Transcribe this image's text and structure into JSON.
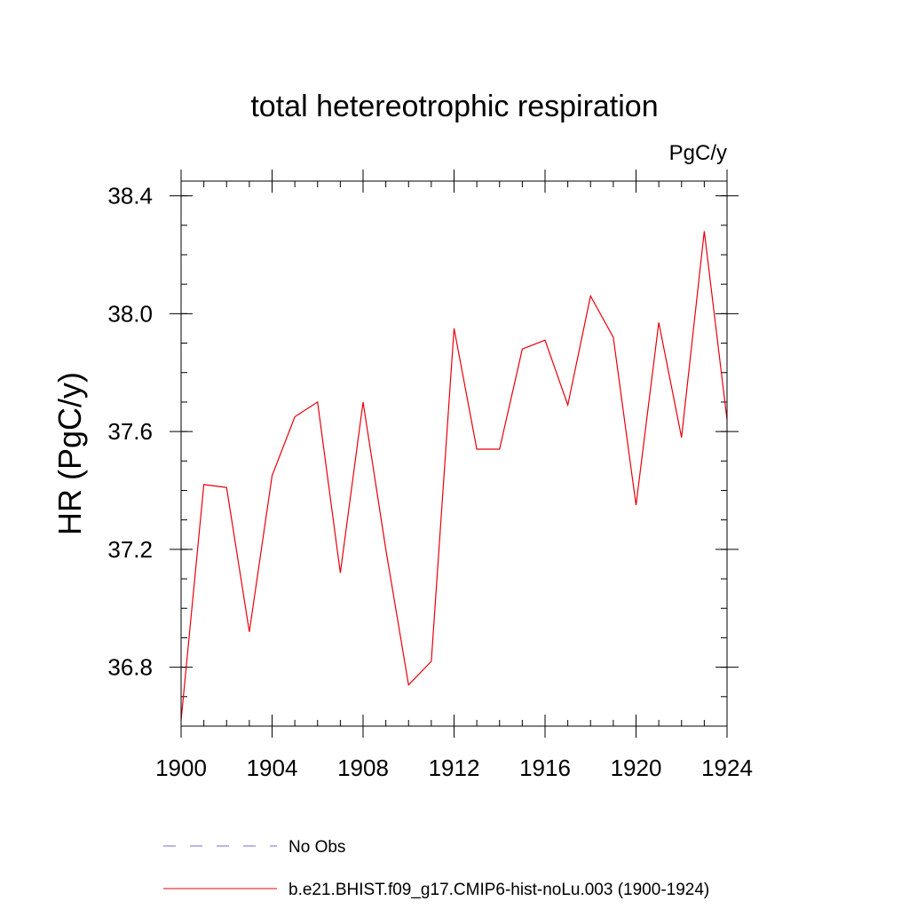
{
  "chart_data": {
    "type": "line",
    "title": "total hetereotrophic respiration",
    "units_label": "PgC/y",
    "ylabel": "HR  (PgC/y)",
    "xlabel": "",
    "xlim": [
      1900,
      1924
    ],
    "ylim": [
      36.6,
      38.45
    ],
    "x_ticks": [
      1900,
      1904,
      1908,
      1912,
      1916,
      1920,
      1924
    ],
    "x_tick_labels": [
      "1900",
      "1904",
      "1908",
      "1912",
      "1916",
      "1920",
      "1924"
    ],
    "y_ticks": [
      36.8,
      37.2,
      37.6,
      38.0,
      38.4
    ],
    "y_tick_labels": [
      "36.8",
      "37.2",
      "37.6",
      "38.0",
      "38.4"
    ],
    "x_minor_step": 1,
    "y_minor_step": 0.1,
    "grid": false,
    "legend_position": "bottom",
    "series": [
      {
        "name": "b.e21.BHIST.f09_g17.CMIP6-hist-noLu.003 (1900-1924)",
        "color": "#e8000b",
        "style": "solid",
        "x": [
          1900,
          1901,
          1902,
          1903,
          1904,
          1905,
          1906,
          1907,
          1908,
          1909,
          1910,
          1911,
          1912,
          1913,
          1914,
          1915,
          1916,
          1917,
          1918,
          1919,
          1920,
          1921,
          1922,
          1923,
          1924
        ],
        "values": [
          36.62,
          37.42,
          37.41,
          36.92,
          37.45,
          37.65,
          37.7,
          37.12,
          37.7,
          37.2,
          36.74,
          36.82,
          37.95,
          37.54,
          37.54,
          37.88,
          37.91,
          37.69,
          38.06,
          37.92,
          37.35,
          37.97,
          37.58,
          38.28,
          37.64
        ]
      }
    ],
    "legend": [
      {
        "label": "No Obs",
        "color": "#7a6ec4",
        "style": "dashed"
      },
      {
        "label": "b.e21.BHIST.f09_g17.CMIP6-hist-noLu.003 (1900-1924)",
        "color": "#e8000b",
        "style": "solid"
      }
    ]
  }
}
